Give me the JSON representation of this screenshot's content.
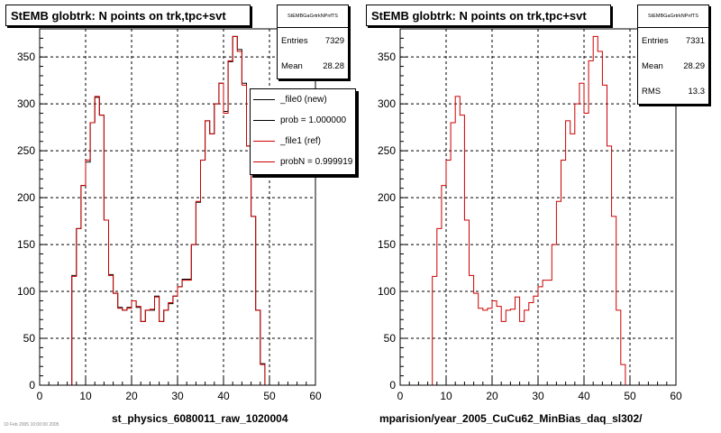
{
  "chart_data": [
    {
      "type": "histogram",
      "title": "StEMB globtrk: N points on trk,tpc+svt",
      "xlabel": "st_physics_6080011_raw_1020004",
      "xlim": [
        0,
        60
      ],
      "ylim": [
        0,
        380
      ],
      "x_ticks": [
        "0",
        "10",
        "20",
        "30",
        "40",
        "50",
        "60"
      ],
      "y_ticks": [
        "0",
        "50",
        "100",
        "150",
        "200",
        "250",
        "300",
        "350"
      ],
      "grid": true,
      "bin_width": 1,
      "x_start": 0,
      "stats": {
        "name": "StEMBGaGrtrkNPnfTS",
        "Entries": "7329",
        "Mean": "28.28"
      },
      "legend": [
        {
          "label": "_file0 (new)",
          "color": "#000000"
        },
        {
          "label": "prob = 1.000000",
          "color": "#000000"
        },
        {
          "label": "_file1 (ref)",
          "color": "#cc0000"
        },
        {
          "label": "probN = 0.999919",
          "color": "#cc0000"
        }
      ],
      "series": [
        {
          "name": "_file0 (new)",
          "color": "#000000",
          "values": [
            0,
            0,
            0,
            0,
            0,
            0,
            0,
            117,
            167,
            213,
            238,
            280,
            307,
            288,
            176,
            118,
            98,
            83,
            80,
            83,
            90,
            83,
            68,
            80,
            80,
            95,
            68,
            80,
            87,
            95,
            105,
            113,
            113,
            150,
            195,
            240,
            282,
            268,
            300,
            322,
            292,
            345,
            372,
            358,
            322,
            255,
            180,
            80,
            23,
            0,
            0,
            0,
            0,
            0,
            0,
            0,
            0,
            0,
            0,
            0
          ]
        },
        {
          "name": "_file1 (ref)",
          "color": "#cc0000",
          "values": [
            0,
            0,
            0,
            0,
            0,
            0,
            0,
            116,
            167,
            213,
            240,
            280,
            308,
            288,
            176,
            117,
            98,
            82,
            80,
            82,
            90,
            84,
            68,
            80,
            81,
            94,
            68,
            80,
            88,
            95,
            105,
            112,
            112,
            150,
            196,
            240,
            282,
            268,
            300,
            322,
            290,
            346,
            372,
            356,
            320,
            255,
            180,
            80,
            22,
            0,
            0,
            0,
            0,
            0,
            0,
            0,
            0,
            0,
            0,
            0
          ]
        }
      ]
    },
    {
      "type": "histogram",
      "title": "StEMB globtrk: N points on trk,tpc+svt",
      "xlabel": "mparision/year_2005_CuCu62_MinBias_daq_sl302/",
      "xlim": [
        0,
        60
      ],
      "ylim": [
        0,
        380
      ],
      "x_ticks": [
        "0",
        "10",
        "20",
        "30",
        "40",
        "50",
        "60"
      ],
      "y_ticks": [
        "0",
        "50",
        "100",
        "150",
        "200",
        "250",
        "300",
        "350"
      ],
      "grid": true,
      "bin_width": 1,
      "x_start": 0,
      "stats": {
        "name": "StEMBGaGrtrkNPnfTS",
        "Entries": "7331",
        "Mean": "28.29",
        "RMS": "13.3"
      },
      "series": [
        {
          "name": "",
          "color": "#cc0000",
          "values": [
            0,
            0,
            0,
            0,
            0,
            0,
            0,
            116,
            167,
            213,
            240,
            280,
            308,
            288,
            176,
            117,
            98,
            82,
            80,
            82,
            90,
            84,
            68,
            80,
            81,
            94,
            68,
            80,
            88,
            95,
            105,
            112,
            112,
            150,
            196,
            240,
            282,
            268,
            300,
            322,
            290,
            346,
            372,
            356,
            320,
            255,
            180,
            80,
            22,
            0,
            0,
            0,
            0,
            0,
            0,
            0,
            0,
            0,
            0,
            0
          ]
        }
      ]
    }
  ],
  "footnote": "10 Feb 2005  10:00:00 2005"
}
